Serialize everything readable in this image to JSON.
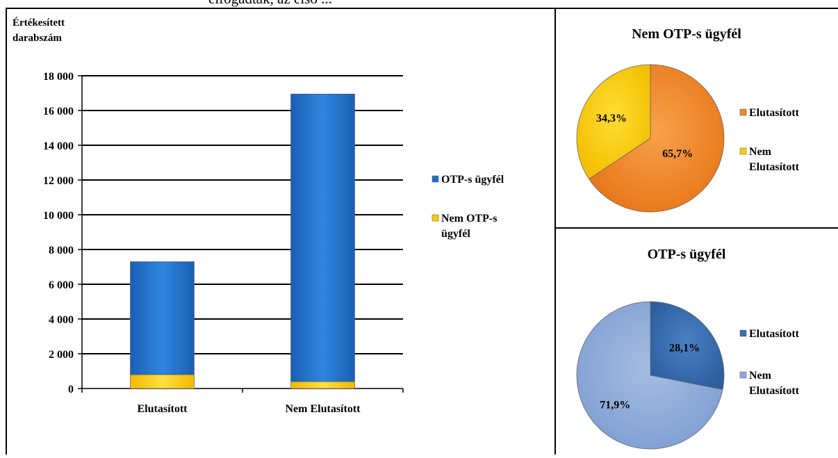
{
  "caption_fragment": "elfogadták, az első ...",
  "chart_data": [
    {
      "type": "bar",
      "stacked": true,
      "ylabel": "Értékesített darabszám",
      "categories": [
        "Elutasított",
        "Nem Elutasított"
      ],
      "series": [
        {
          "name": "Nem OTP-s ügyfél",
          "color": "#ffcc00",
          "values": [
            800,
            400
          ]
        },
        {
          "name": "OTP-s ügyfél",
          "color": "#1f6fc8",
          "values": [
            6500,
            16550
          ]
        }
      ],
      "ylim": [
        0,
        18000
      ],
      "yticks": [
        0,
        2000,
        4000,
        6000,
        8000,
        10000,
        12000,
        14000,
        16000,
        18000
      ],
      "ytick_labels": [
        "0",
        "2 000",
        "4 000",
        "6 000",
        "8 000",
        "10 000",
        "12 000",
        "14 000",
        "16 000",
        "18 000"
      ],
      "legend": [
        {
          "label": "OTP-s ügyfél",
          "color": "#1f6fc8"
        },
        {
          "label": "Nem OTP-s ügyfél",
          "color": "#ffcc00"
        }
      ],
      "legend_position": "right",
      "grid": true
    },
    {
      "type": "pie",
      "title": "Nem OTP-s ügyfél",
      "slices": [
        {
          "label": "Elutasított",
          "value": 65.7,
          "value_label": "65,7%",
          "color": "#f0882c"
        },
        {
          "label": "Nem Elutasított",
          "value": 34.3,
          "value_label": "34,3%",
          "color": "#ffcc00"
        }
      ],
      "legend_position": "right"
    },
    {
      "type": "pie",
      "title": "OTP-s ügyfél",
      "slices": [
        {
          "label": "Elutasított",
          "value": 28.1,
          "value_label": "28,1%",
          "color": "#3a6fb5"
        },
        {
          "label": "Nem Elutasított",
          "value": 71.9,
          "value_label": "71,9%",
          "color": "#8ca9d8"
        }
      ],
      "legend_position": "right"
    }
  ]
}
